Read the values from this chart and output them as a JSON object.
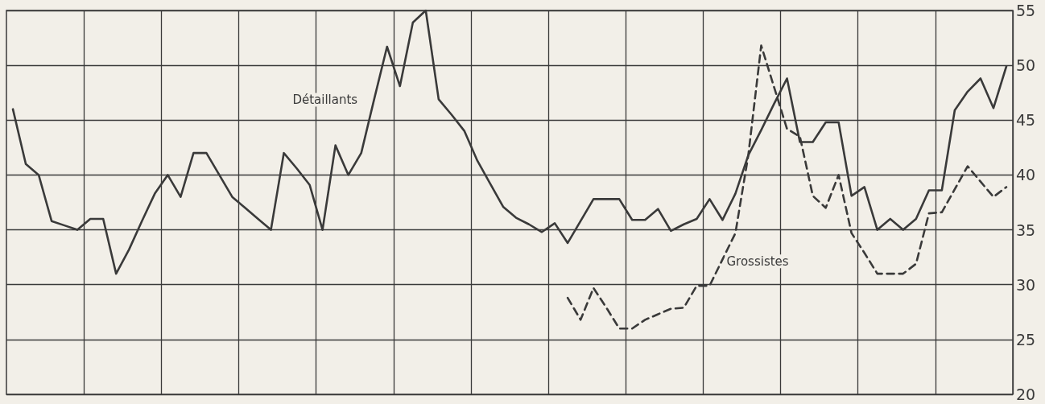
{
  "chart_data": {
    "type": "line",
    "categories": [
      null,
      null,
      null,
      null,
      null,
      null,
      null,
      null,
      null,
      null,
      null,
      null,
      null,
      null,
      null,
      null,
      null,
      null,
      null,
      null,
      null,
      null,
      null,
      null,
      null,
      null,
      null,
      null,
      null,
      null,
      null,
      null,
      null,
      null,
      null,
      null,
      null,
      null,
      null,
      null,
      null,
      null,
      null,
      null,
      null,
      null,
      null,
      null,
      null,
      null,
      null,
      null,
      null,
      null,
      null,
      null,
      null,
      null,
      null,
      null,
      null,
      null,
      null,
      null,
      null,
      null,
      null,
      null,
      null,
      null,
      null,
      null,
      null,
      null,
      null,
      null,
      null,
      null
    ],
    "ylim": [
      20,
      55
    ],
    "yticks": [
      20,
      25,
      30,
      35,
      40,
      45,
      50,
      55
    ],
    "grid": true,
    "tick_labels": "y",
    "marker": "none",
    "series": [
      {
        "name": "Détaillants",
        "color": "#3a3a3a",
        "line_style": "solid",
        "values": [
          46,
          41,
          40,
          35.8,
          35.4,
          35,
          36,
          36,
          31,
          33.2,
          35.8,
          38.3,
          40,
          38,
          42,
          42,
          40,
          38,
          37,
          36,
          35,
          42,
          40.6,
          39.1,
          35,
          42.7,
          40,
          42,
          46.9,
          51.7,
          48.1,
          53.9,
          55,
          46.9,
          45.5,
          44,
          41.3,
          39.2,
          37.1,
          36.1,
          35.5,
          34.8,
          35.6,
          33.8,
          35.8,
          37.8,
          37.8,
          37.8,
          35.9,
          35.9,
          36.9,
          34.9,
          35.5,
          36,
          37.8,
          35.9,
          38.3,
          41.8,
          44.1,
          46.5,
          48.8,
          43,
          43,
          44.8,
          44.8,
          38.1,
          38.9,
          35,
          36,
          35,
          36,
          38.6,
          38.6,
          45.9,
          47.6,
          48.8,
          46.1,
          49.9
        ]
      },
      {
        "name": "Grossistes",
        "color": "#3a3a3a",
        "line_style": "dashed",
        "values": [
          null,
          null,
          null,
          null,
          null,
          null,
          null,
          null,
          null,
          null,
          null,
          null,
          null,
          null,
          null,
          null,
          null,
          null,
          null,
          null,
          null,
          null,
          null,
          null,
          null,
          null,
          null,
          null,
          null,
          null,
          null,
          null,
          null,
          null,
          null,
          null,
          null,
          null,
          null,
          null,
          null,
          null,
          null,
          28.8,
          26.8,
          29.7,
          27.9,
          26,
          26,
          26.8,
          27.3,
          27.8,
          27.9,
          29.9,
          29.9,
          32.3,
          34.7,
          41.8,
          51.8,
          48,
          44.2,
          43.5,
          38.1,
          37,
          40,
          34.7,
          32.9,
          31,
          31,
          31,
          31.9,
          36.5,
          36.6,
          38.7,
          40.8,
          39.4,
          38,
          38.9
        ]
      }
    ]
  }
}
